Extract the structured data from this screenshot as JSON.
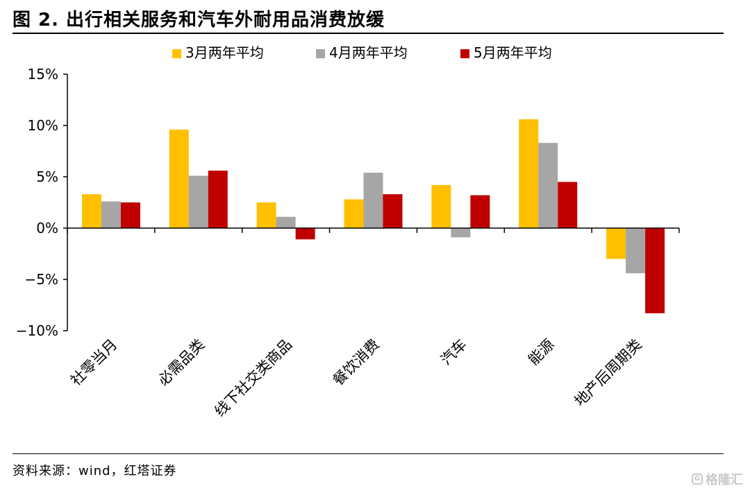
{
  "header": {
    "figure_label": "图 2.",
    "title": "出行相关服务和汽车外耐用品消费放缓"
  },
  "footer": {
    "source": "资料来源：wind，红塔证券"
  },
  "watermark": {
    "text": "格隆汇",
    "icon": "G"
  },
  "chart_data": {
    "type": "bar",
    "title": "出行相关服务和汽车外耐用品消费放缓",
    "xlabel": "",
    "ylabel": "",
    "ylim": [
      -10,
      15
    ],
    "yticks": [
      -10,
      -5,
      0,
      5,
      10,
      15
    ],
    "ytick_labels": [
      "−10%",
      "−5%",
      "0%",
      "5%",
      "10%",
      "15%"
    ],
    "grid": false,
    "legend_position": "top-center",
    "categories": [
      "社零当月",
      "必需品类",
      "线下社交类商品",
      "餐饮消费",
      "汽车",
      "能源",
      "地产后周期类"
    ],
    "series": [
      {
        "name": "3月两年平均",
        "color": "#FFC000",
        "values": [
          3.3,
          9.6,
          2.5,
          2.8,
          4.2,
          10.6,
          -3.0
        ]
      },
      {
        "name": "4月两年平均",
        "color": "#A6A6A6",
        "values": [
          2.6,
          5.1,
          1.1,
          5.4,
          -0.9,
          8.3,
          -4.4
        ]
      },
      {
        "name": "5月两年平均",
        "color": "#C00000",
        "values": [
          2.5,
          5.6,
          -1.1,
          3.3,
          3.2,
          4.5,
          -8.3
        ]
      }
    ]
  }
}
